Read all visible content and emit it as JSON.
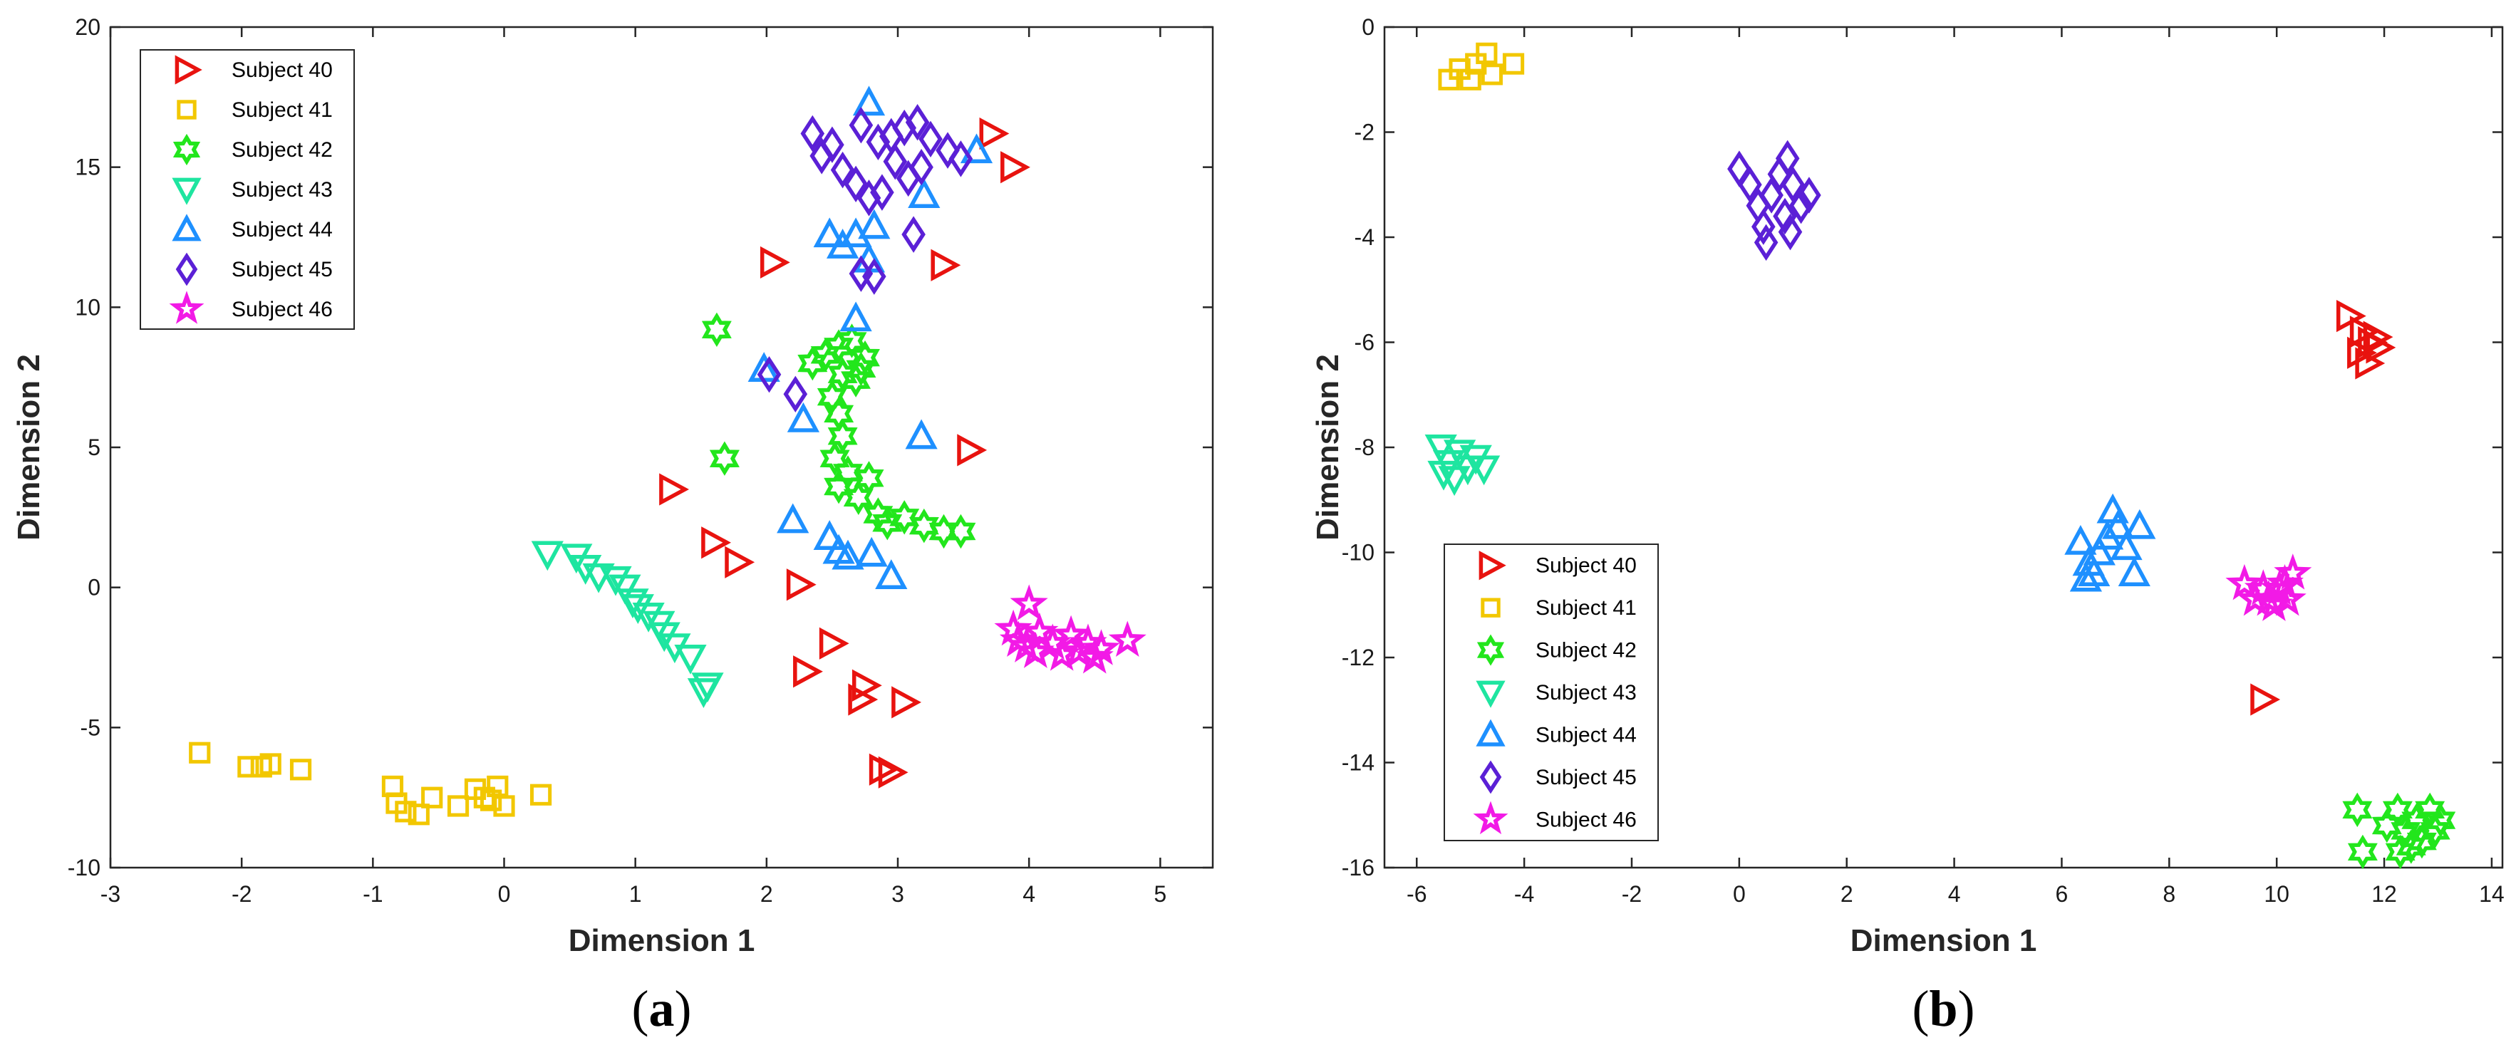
{
  "colors": {
    "Subject 40": "#e8130f",
    "Subject 41": "#f2c700",
    "Subject 42": "#22e61c",
    "Subject 43": "#1ee5a0",
    "Subject 44": "#1e90ff",
    "Subject 45": "#5b20d6",
    "Subject 46": "#f21ae6"
  },
  "chart_data": [
    {
      "type": "scatter",
      "panel_label": "(a)",
      "panel_letter": "a",
      "xlabel": "Dimension 1",
      "ylabel": "Dimension 2",
      "xlim": [
        -3,
        5.4
      ],
      "ylim": [
        -10,
        20
      ],
      "xticks": [
        -3,
        -2,
        -1,
        0,
        1,
        2,
        3,
        4,
        5
      ],
      "yticks": [
        -10,
        -5,
        0,
        5,
        10,
        15,
        20
      ],
      "legend_position": "top-left",
      "series": [
        {
          "name": "Subject 40",
          "marker": "triangle-right",
          "points": [
            [
              3.72,
              16.2
            ],
            [
              3.88,
              15.0
            ],
            [
              2.05,
              11.6
            ],
            [
              3.35,
              11.5
            ],
            [
              3.55,
              4.9
            ],
            [
              1.28,
              3.5
            ],
            [
              1.6,
              1.6
            ],
            [
              1.78,
              0.9
            ],
            [
              2.25,
              0.1
            ],
            [
              2.5,
              -2.0
            ],
            [
              2.3,
              -3.0
            ],
            [
              2.75,
              -3.5
            ],
            [
              2.72,
              -4.0
            ],
            [
              3.05,
              -4.1
            ],
            [
              2.88,
              -6.5
            ],
            [
              2.95,
              -6.6
            ]
          ]
        },
        {
          "name": "Subject 41",
          "marker": "square",
          "points": [
            [
              -2.32,
              -5.9
            ],
            [
              -1.95,
              -6.4
            ],
            [
              -1.85,
              -6.4
            ],
            [
              -1.78,
              -6.3
            ],
            [
              -1.55,
              -6.5
            ],
            [
              -0.85,
              -7.1
            ],
            [
              -0.82,
              -7.7
            ],
            [
              -0.75,
              -8.0
            ],
            [
              -0.65,
              -8.1
            ],
            [
              -0.55,
              -7.5
            ],
            [
              -0.35,
              -7.8
            ],
            [
              -0.22,
              -7.2
            ],
            [
              -0.15,
              -7.5
            ],
            [
              -0.05,
              -7.1
            ],
            [
              0.0,
              -7.8
            ],
            [
              0.28,
              -7.4
            ],
            [
              -0.1,
              -7.6
            ]
          ]
        },
        {
          "name": "Subject 42",
          "marker": "hexagram",
          "points": [
            [
              1.62,
              9.2
            ],
            [
              1.68,
              4.6
            ],
            [
              2.35,
              8.0
            ],
            [
              2.45,
              8.3
            ],
            [
              2.55,
              8.6
            ],
            [
              2.65,
              8.8
            ],
            [
              2.75,
              8.2
            ],
            [
              2.58,
              7.6
            ],
            [
              2.68,
              7.4
            ],
            [
              2.72,
              7.8
            ],
            [
              2.5,
              6.8
            ],
            [
              2.55,
              6.2
            ],
            [
              2.58,
              5.4
            ],
            [
              2.52,
              4.6
            ],
            [
              2.62,
              4.1
            ],
            [
              2.55,
              3.6
            ],
            [
              2.7,
              3.2
            ],
            [
              2.78,
              3.9
            ],
            [
              2.85,
              2.6
            ],
            [
              2.92,
              2.3
            ],
            [
              3.05,
              2.5
            ],
            [
              3.2,
              2.2
            ],
            [
              3.35,
              2.0
            ],
            [
              3.48,
              2.0
            ]
          ]
        },
        {
          "name": "Subject 43",
          "marker": "triangle-down",
          "points": [
            [
              0.33,
              1.2
            ],
            [
              0.55,
              1.1
            ],
            [
              0.62,
              0.7
            ],
            [
              0.72,
              0.4
            ],
            [
              0.85,
              0.3
            ],
            [
              0.92,
              0.0
            ],
            [
              0.98,
              -0.5
            ],
            [
              1.02,
              -0.7
            ],
            [
              1.1,
              -1.0
            ],
            [
              1.18,
              -1.3
            ],
            [
              1.22,
              -1.7
            ],
            [
              1.3,
              -2.1
            ],
            [
              1.42,
              -2.5
            ],
            [
              1.55,
              -3.5
            ],
            [
              1.52,
              -3.7
            ]
          ]
        },
        {
          "name": "Subject 44",
          "marker": "triangle-up",
          "points": [
            [
              2.78,
              17.3
            ],
            [
              3.6,
              15.6
            ],
            [
              3.2,
              14.0
            ],
            [
              2.48,
              12.6
            ],
            [
              2.58,
              12.2
            ],
            [
              2.68,
              12.6
            ],
            [
              2.82,
              12.9
            ],
            [
              2.78,
              11.7
            ],
            [
              2.68,
              9.6
            ],
            [
              1.98,
              7.8
            ],
            [
              2.28,
              6.0
            ],
            [
              3.18,
              5.4
            ],
            [
              2.2,
              2.4
            ],
            [
              2.48,
              1.8
            ],
            [
              2.55,
              1.3
            ],
            [
              2.62,
              1.1
            ],
            [
              2.8,
              1.2
            ],
            [
              2.95,
              0.4
            ]
          ]
        },
        {
          "name": "Subject 45",
          "marker": "diamond",
          "points": [
            [
              2.35,
              16.2
            ],
            [
              2.5,
              15.8
            ],
            [
              2.42,
              15.4
            ],
            [
              2.58,
              14.9
            ],
            [
              2.68,
              14.4
            ],
            [
              2.72,
              16.5
            ],
            [
              2.85,
              15.9
            ],
            [
              2.95,
              16.1
            ],
            [
              3.05,
              16.4
            ],
            [
              3.15,
              16.6
            ],
            [
              3.25,
              16.0
            ],
            [
              3.38,
              15.6
            ],
            [
              3.48,
              15.3
            ],
            [
              2.98,
              15.2
            ],
            [
              3.08,
              14.6
            ],
            [
              3.18,
              15.0
            ],
            [
              2.88,
              14.1
            ],
            [
              2.78,
              13.9
            ],
            [
              2.72,
              11.2
            ],
            [
              2.82,
              11.1
            ],
            [
              3.12,
              12.6
            ],
            [
              2.02,
              7.6
            ],
            [
              2.22,
              6.9
            ]
          ]
        },
        {
          "name": "Subject 46",
          "marker": "pentagram",
          "points": [
            [
              4.0,
              -0.6
            ],
            [
              3.88,
              -1.5
            ],
            [
              3.92,
              -1.9
            ],
            [
              3.98,
              -2.1
            ],
            [
              4.08,
              -1.6
            ],
            [
              4.18,
              -2.0
            ],
            [
              4.25,
              -2.4
            ],
            [
              4.32,
              -1.7
            ],
            [
              4.38,
              -2.3
            ],
            [
              4.45,
              -2.0
            ],
            [
              4.5,
              -2.5
            ],
            [
              4.55,
              -2.2
            ],
            [
              4.75,
              -1.9
            ],
            [
              4.05,
              -2.3
            ]
          ]
        }
      ]
    },
    {
      "type": "scatter",
      "panel_label": "(b)",
      "panel_letter": "b",
      "xlabel": "Dimension 1",
      "ylabel": "Dimension 2",
      "xlim": [
        -6.6,
        14.2
      ],
      "ylim": [
        -16,
        0
      ],
      "xticks": [
        -6,
        -4,
        -2,
        0,
        2,
        4,
        6,
        8,
        10,
        12,
        14
      ],
      "yticks": [
        -16,
        -14,
        -12,
        -10,
        -8,
        -6,
        -4,
        -2,
        0
      ],
      "legend_position": "bottom-left",
      "series": [
        {
          "name": "Subject 40",
          "marker": "triangle-right",
          "points": [
            [
              11.35,
              -5.5
            ],
            [
              11.6,
              -5.8
            ],
            [
              11.75,
              -6.0
            ],
            [
              11.9,
              -6.1
            ],
            [
              11.7,
              -6.4
            ],
            [
              11.55,
              -6.2
            ],
            [
              11.85,
              -5.9
            ],
            [
              9.75,
              -12.8
            ]
          ]
        },
        {
          "name": "Subject 41",
          "marker": "square",
          "points": [
            [
              -5.4,
              -1.0
            ],
            [
              -5.2,
              -0.8
            ],
            [
              -4.9,
              -0.7
            ],
            [
              -4.7,
              -0.5
            ],
            [
              -4.6,
              -0.9
            ],
            [
              -4.2,
              -0.7
            ],
            [
              -5.0,
              -1.0
            ]
          ]
        },
        {
          "name": "Subject 42",
          "marker": "hexagram",
          "points": [
            [
              11.5,
              -14.9
            ],
            [
              11.6,
              -15.7
            ],
            [
              12.05,
              -15.2
            ],
            [
              12.25,
              -14.9
            ],
            [
              12.4,
              -15.3
            ],
            [
              12.5,
              -15.6
            ],
            [
              12.6,
              -15.1
            ],
            [
              12.85,
              -14.9
            ],
            [
              12.95,
              -15.3
            ],
            [
              13.05,
              -15.1
            ],
            [
              12.3,
              -15.7
            ],
            [
              12.7,
              -15.5
            ]
          ]
        },
        {
          "name": "Subject 43",
          "marker": "triangle-down",
          "points": [
            [
              -5.55,
              -8.0
            ],
            [
              -5.4,
              -8.3
            ],
            [
              -5.3,
              -8.6
            ],
            [
              -5.2,
              -8.1
            ],
            [
              -5.05,
              -8.4
            ],
            [
              -4.9,
              -8.2
            ],
            [
              -4.75,
              -8.4
            ],
            [
              -5.5,
              -8.5
            ]
          ]
        },
        {
          "name": "Subject 44",
          "marker": "triangle-up",
          "points": [
            [
              6.35,
              -9.8
            ],
            [
              6.5,
              -10.2
            ],
            [
              6.45,
              -10.5
            ],
            [
              6.7,
              -10.0
            ],
            [
              6.85,
              -9.7
            ],
            [
              6.95,
              -9.2
            ],
            [
              7.05,
              -9.5
            ],
            [
              7.2,
              -9.9
            ],
            [
              7.35,
              -10.4
            ],
            [
              7.45,
              -9.5
            ],
            [
              6.6,
              -10.4
            ]
          ]
        },
        {
          "name": "Subject 45",
          "marker": "diamond",
          "points": [
            [
              0.0,
              -2.7
            ],
            [
              0.2,
              -3.0
            ],
            [
              0.35,
              -3.4
            ],
            [
              0.45,
              -3.8
            ],
            [
              0.5,
              -4.1
            ],
            [
              0.6,
              -3.2
            ],
            [
              0.75,
              -2.8
            ],
            [
              0.9,
              -2.5
            ],
            [
              1.0,
              -3.0
            ],
            [
              1.15,
              -3.4
            ],
            [
              1.3,
              -3.2
            ],
            [
              0.85,
              -3.6
            ],
            [
              0.95,
              -3.9
            ]
          ]
        },
        {
          "name": "Subject 46",
          "marker": "pentagram",
          "points": [
            [
              9.4,
              -10.6
            ],
            [
              9.6,
              -10.9
            ],
            [
              9.75,
              -10.7
            ],
            [
              9.85,
              -10.9
            ],
            [
              9.95,
              -11.0
            ],
            [
              10.05,
              -10.7
            ],
            [
              10.15,
              -10.6
            ],
            [
              10.3,
              -10.4
            ],
            [
              10.2,
              -10.9
            ]
          ]
        }
      ]
    }
  ]
}
